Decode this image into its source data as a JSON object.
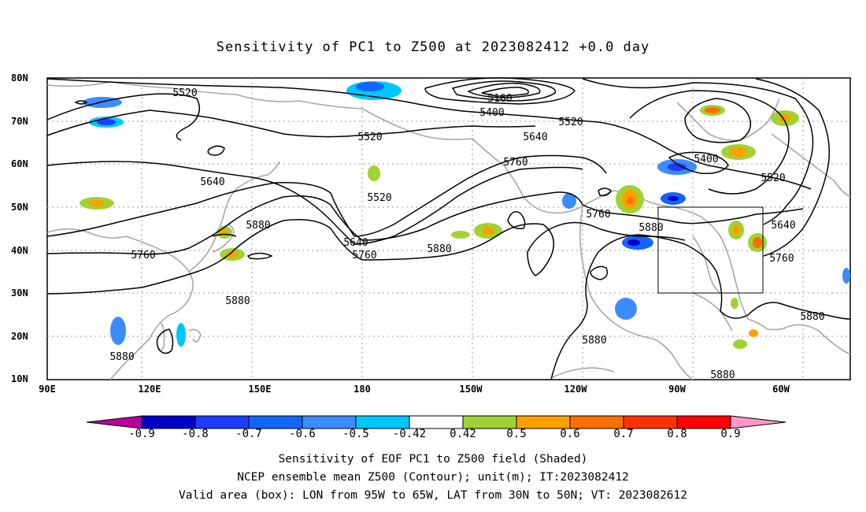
{
  "title": "Sensitivity of PC1 to Z500 at 2023082412 +0.0 day",
  "lat_labels": [
    "80N",
    "70N",
    "60N",
    "50N",
    "40N",
    "30N",
    "20N",
    "10N"
  ],
  "lon_labels": [
    "90E",
    "120E",
    "150E",
    "180",
    "150W",
    "120W",
    "90W",
    "60W"
  ],
  "contour_labels": [
    "5160",
    "5400",
    "5520",
    "5520",
    "5520",
    "5520",
    "5520",
    "5640",
    "5640",
    "5640",
    "5640",
    "5760",
    "5760",
    "5760",
    "5760",
    "5760",
    "5880",
    "5880",
    "5880",
    "5880",
    "5880",
    "5880",
    "5880",
    "5400"
  ],
  "colorbar": {
    "labels": [
      "-0.9",
      "-0.8",
      "-0.7",
      "-0.6",
      "-0.5",
      "-0.42",
      "0.42",
      "0.5",
      "0.6",
      "0.7",
      "0.8",
      "0.9"
    ],
    "colors": [
      "#b4009e",
      "#0000c8",
      "#1e3cff",
      "#1464ff",
      "#3c8cff",
      "#00c8ff",
      "#ffffff",
      "#a0d232",
      "#ffa000",
      "#ff6e00",
      "#ff3200",
      "#ff0000",
      "#ff96c8"
    ]
  },
  "captions": [
    "Sensitivity of EOF PC1 to Z500 field (Shaded)",
    "NCEP ensemble mean Z500 (Contour); unit(m); IT:2023082412",
    "Valid area (box): LON from 95W to 65W, LAT from 30N to 50N; VT: 2023082612"
  ],
  "valid_box": {
    "lon_from": "95W",
    "lon_to": "65W",
    "lat_from": "30N",
    "lat_to": "50N"
  }
}
